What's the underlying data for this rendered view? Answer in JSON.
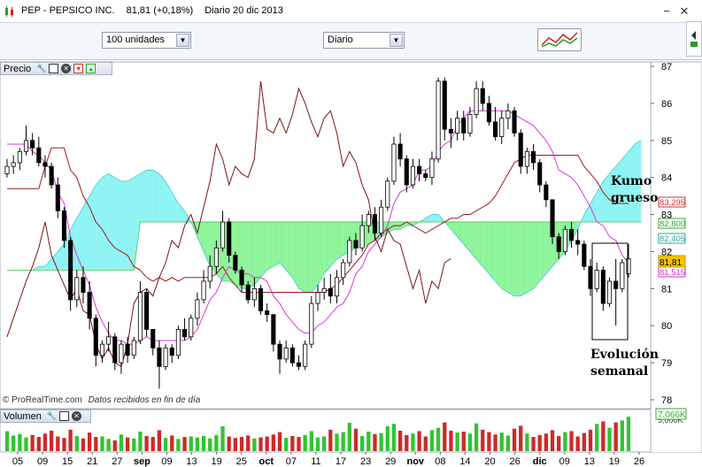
{
  "window": {
    "ticker": "PEP - PEPSICO INC.",
    "price_change": "81,81 (+0,18%)",
    "period_date": "Diario  20 dic 2013"
  },
  "toolbar": {
    "units_select": "100 unidades",
    "period_select": "Diario"
  },
  "price_panel": {
    "label": "Precio",
    "copyright": "© ProRealTime.com",
    "data_note": "Datos recibidos en fin de día"
  },
  "volume_panel": {
    "label": "Volumen",
    "last_value": "7,066K",
    "axis_label": "5,000K"
  },
  "annotations": {
    "kumo": "Kumo grueso",
    "evolucion": "Evolución semanal"
  },
  "colors": {
    "cloud_bull": "#8ef4f4",
    "cloud_bear": "#8ef49a",
    "kijun": "#9b1c1c",
    "tenkan": "#d838d8",
    "chikou": "#7a1515",
    "vol_up": "#31c431",
    "vol_down": "#cc2a2a"
  },
  "chart_data": {
    "type": "candlestick",
    "ylim": [
      78,
      87
    ],
    "yticks": [
      78,
      79,
      80,
      81,
      82,
      83,
      84,
      85,
      86,
      87
    ],
    "x_date_labels": [
      "05",
      "09",
      "15",
      "21",
      "27",
      "sep",
      "09",
      "13",
      "19",
      "25",
      "oct",
      "07",
      "11",
      "17",
      "23",
      "29",
      "nov",
      "08",
      "14",
      "20",
      "26",
      "dic",
      "09",
      "13",
      "19",
      "26"
    ],
    "last_price_tag": "81,81",
    "indicator_tags": [
      {
        "value": "83,295",
        "color": "#cc3333"
      },
      {
        "value": "82,800",
        "color": "#33aa33"
      },
      {
        "value": "82,405",
        "color": "#22aaaa"
      },
      {
        "value": "81,515",
        "color": "#cc33cc"
      }
    ],
    "candles": [
      [
        84.1,
        84.5,
        84.0,
        84.3
      ],
      [
        84.3,
        84.6,
        84.1,
        84.4
      ],
      [
        84.4,
        84.8,
        84.2,
        84.7
      ],
      [
        84.7,
        85.4,
        84.6,
        85.0
      ],
      [
        85.0,
        85.2,
        84.6,
        84.8
      ],
      [
        84.8,
        85.1,
        84.3,
        84.4
      ],
      [
        84.4,
        84.6,
        84.0,
        84.3
      ],
      [
        84.3,
        84.4,
        83.7,
        83.8
      ],
      [
        83.8,
        84.0,
        82.9,
        83.1
      ],
      [
        83.1,
        83.2,
        82.1,
        82.3
      ],
      [
        82.3,
        82.4,
        80.4,
        80.7
      ],
      [
        80.7,
        81.5,
        80.5,
        81.3
      ],
      [
        81.3,
        81.6,
        80.6,
        80.9
      ],
      [
        80.9,
        81.2,
        79.9,
        80.2
      ],
      [
        80.2,
        80.3,
        78.9,
        79.2
      ],
      [
        79.2,
        79.6,
        79.0,
        79.5
      ],
      [
        79.5,
        80.1,
        79.3,
        79.7
      ],
      [
        79.7,
        79.8,
        78.8,
        79.0
      ],
      [
        79.0,
        79.6,
        78.7,
        79.5
      ],
      [
        79.5,
        79.7,
        79.0,
        79.2
      ],
      [
        79.2,
        79.7,
        79.1,
        79.6
      ],
      [
        79.6,
        81.2,
        79.5,
        80.9
      ],
      [
        80.9,
        81.0,
        79.7,
        79.9
      ],
      [
        79.9,
        79.9,
        79.2,
        79.4
      ],
      [
        79.4,
        79.6,
        78.3,
        78.9
      ],
      [
        78.9,
        79.5,
        78.8,
        79.4
      ],
      [
        79.4,
        79.5,
        79.0,
        79.2
      ],
      [
        79.2,
        80.0,
        79.1,
        79.9
      ],
      [
        79.9,
        80.2,
        79.6,
        79.7
      ],
      [
        79.7,
        80.3,
        79.6,
        80.2
      ],
      [
        80.2,
        80.9,
        80.0,
        80.7
      ],
      [
        80.7,
        81.5,
        80.6,
        81.2
      ],
      [
        81.2,
        81.9,
        81.0,
        81.6
      ],
      [
        81.6,
        82.3,
        81.4,
        82.1
      ],
      [
        82.1,
        83.1,
        82.0,
        82.8
      ],
      [
        82.8,
        82.9,
        81.7,
        81.9
      ],
      [
        81.9,
        82.0,
        81.4,
        81.5
      ],
      [
        81.5,
        81.6,
        80.9,
        81.1
      ],
      [
        81.1,
        81.2,
        80.6,
        80.7
      ],
      [
        80.7,
        81.3,
        80.5,
        81.0
      ],
      [
        81.0,
        81.1,
        80.3,
        80.4
      ],
      [
        80.4,
        80.6,
        80.1,
        80.3
      ],
      [
        80.3,
        80.3,
        79.3,
        79.5
      ],
      [
        79.5,
        79.6,
        78.7,
        79.1
      ],
      [
        79.1,
        79.6,
        79.0,
        79.4
      ],
      [
        79.4,
        79.5,
        78.9,
        79.0
      ],
      [
        79.0,
        79.2,
        78.8,
        78.9
      ],
      [
        78.9,
        79.6,
        78.8,
        79.5
      ],
      [
        79.5,
        80.8,
        79.4,
        80.6
      ],
      [
        80.6,
        81.1,
        80.4,
        80.9
      ],
      [
        80.9,
        81.3,
        80.7,
        81.0
      ],
      [
        81.0,
        81.4,
        80.6,
        80.8
      ],
      [
        80.8,
        81.5,
        80.6,
        81.3
      ],
      [
        81.3,
        81.8,
        81.1,
        81.7
      ],
      [
        81.7,
        82.4,
        81.6,
        82.3
      ],
      [
        82.3,
        82.5,
        81.9,
        82.1
      ],
      [
        82.1,
        83.0,
        82.0,
        82.7
      ],
      [
        82.7,
        83.1,
        82.5,
        83.0
      ],
      [
        83.0,
        83.2,
        82.3,
        82.5
      ],
      [
        82.5,
        83.4,
        82.4,
        83.2
      ],
      [
        83.2,
        84.0,
        83.1,
        83.9
      ],
      [
        83.9,
        85.1,
        83.8,
        84.9
      ],
      [
        84.9,
        85.2,
        84.3,
        84.5
      ],
      [
        84.5,
        84.6,
        83.6,
        83.8
      ],
      [
        83.8,
        84.5,
        83.7,
        84.3
      ],
      [
        84.3,
        84.5,
        83.9,
        84.1
      ],
      [
        84.1,
        84.2,
        83.9,
        84.0
      ],
      [
        84.0,
        84.7,
        83.8,
        84.5
      ],
      [
        84.5,
        86.7,
        84.4,
        86.6
      ],
      [
        86.6,
        86.7,
        85.0,
        85.3
      ],
      [
        85.3,
        85.6,
        84.8,
        85.2
      ],
      [
        85.2,
        85.8,
        85.0,
        85.6
      ],
      [
        85.6,
        85.8,
        85.0,
        85.2
      ],
      [
        85.2,
        85.9,
        85.1,
        85.7
      ],
      [
        85.7,
        86.6,
        85.6,
        86.4
      ],
      [
        86.4,
        86.6,
        85.8,
        86.0
      ],
      [
        86.0,
        86.2,
        85.4,
        85.5
      ],
      [
        85.5,
        85.9,
        85.0,
        85.1
      ],
      [
        85.1,
        85.8,
        84.9,
        85.6
      ],
      [
        85.6,
        86.0,
        85.3,
        85.8
      ],
      [
        85.8,
        85.9,
        85.1,
        85.2
      ],
      [
        85.2,
        85.3,
        84.1,
        84.3
      ],
      [
        84.3,
        84.8,
        84.1,
        84.7
      ],
      [
        84.7,
        84.9,
        84.2,
        84.4
      ],
      [
        84.4,
        84.5,
        83.6,
        83.8
      ],
      [
        83.8,
        83.9,
        83.2,
        83.4
      ],
      [
        83.4,
        83.4,
        82.2,
        82.4
      ],
      [
        82.4,
        82.5,
        81.8,
        82.0
      ],
      [
        82.0,
        82.7,
        81.9,
        82.6
      ],
      [
        82.6,
        82.8,
        82.1,
        82.3
      ],
      [
        82.3,
        82.6,
        81.9,
        82.2
      ],
      [
        82.2,
        82.3,
        81.5,
        81.6
      ],
      [
        81.6,
        81.8,
        80.8,
        81.0
      ],
      [
        81.0,
        81.7,
        80.9,
        81.5
      ],
      [
        81.5,
        81.6,
        80.4,
        80.6
      ],
      [
        80.6,
        81.3,
        80.5,
        81.2
      ],
      [
        81.2,
        81.8,
        80.0,
        81.0
      ],
      [
        81.0,
        81.8,
        80.9,
        81.7
      ],
      [
        81.4,
        82.2,
        81.3,
        81.81
      ]
    ],
    "volume": [
      4.1,
      3.2,
      3.5,
      2.8,
      3.3,
      2.9,
      3.6,
      4.2,
      3.0,
      2.7,
      4.4,
      3.1,
      2.6,
      3.8,
      2.9,
      3.0,
      2.5,
      2.2,
      3.4,
      2.8,
      2.6,
      4.0,
      3.1,
      2.9,
      4.3,
      2.7,
      3.2,
      2.5,
      2.9,
      3.0,
      2.8,
      3.1,
      2.6,
      3.3,
      5.1,
      3.0,
      2.7,
      2.9,
      3.2,
      2.6,
      2.8,
      3.0,
      3.4,
      3.9,
      2.7,
      3.1,
      2.9,
      3.3,
      4.1,
      2.8,
      3.0,
      4.4,
      3.6,
      3.9,
      5.8,
      4.6,
      3.1,
      4.0,
      3.5,
      3.7,
      5.1,
      5.6,
      4.2,
      3.3,
      3.6,
      4.1,
      3.0,
      4.3,
      4.8,
      5.9,
      4.2,
      3.8,
      4.0,
      3.6,
      5.7,
      4.4,
      3.9,
      3.4,
      3.8,
      3.2,
      4.6,
      5.2,
      3.6,
      2.9,
      3.3,
      3.6,
      4.3,
      3.1,
      3.9,
      4.1,
      3.0,
      3.7,
      4.4,
      5.6,
      6.1,
      4.8,
      5.9,
      6.3,
      7.066
    ],
    "series": [
      {
        "name": "Tenkan",
        "values": [
          84.9,
          84.9,
          84.9,
          84.9,
          84.7,
          84.6,
          84.4,
          84.2,
          83.6,
          83.3,
          82.4,
          81.9,
          81.5,
          81.1,
          80.5,
          80.1,
          79.8,
          79.6,
          79.6,
          79.5,
          79.5,
          79.6,
          79.7,
          79.6,
          79.6,
          79.6,
          79.6,
          79.6,
          79.6,
          79.7,
          79.9,
          80.3,
          80.7,
          80.9,
          81.3,
          81.6,
          81.5,
          81.4,
          81.4,
          81.3,
          81.3,
          81.2,
          80.8,
          80.6,
          80.3,
          80.1,
          79.9,
          79.8,
          79.8,
          80.0,
          80.1,
          80.3,
          80.5,
          80.6,
          80.9,
          81.4,
          81.6,
          82.0,
          82.2,
          82.4,
          82.7,
          83.3,
          83.6,
          83.7,
          83.8,
          84.2,
          84.2,
          84.3,
          84.7,
          84.9,
          85.0,
          85.4,
          85.6,
          85.8,
          85.8,
          85.8,
          85.8,
          85.8,
          85.8,
          85.8,
          85.7,
          85.6,
          85.5,
          85.4,
          85.2,
          85.0,
          84.7,
          84.2,
          84.1,
          84.0,
          83.8,
          83.5,
          83.2,
          82.8,
          82.7,
          82.4,
          82.3,
          81.9,
          81.7
        ]
      },
      {
        "name": "Kijun",
        "values": [
          83.7,
          83.7,
          83.7,
          83.7,
          83.7,
          83.7,
          84.3,
          84.8,
          84.8,
          84.8,
          84.2,
          84.0,
          83.5,
          83.2,
          82.8,
          82.6,
          82.3,
          82.1,
          82.0,
          81.9,
          81.6,
          81.5,
          81.3,
          81.2,
          81.3,
          81.2,
          81.3,
          81.2,
          81.3,
          81.3,
          81.3,
          81.3,
          81.3,
          81.4,
          81.6,
          81.3,
          81.1,
          80.9,
          80.9,
          80.9,
          80.9,
          80.9,
          80.9,
          80.9,
          80.9,
          80.9,
          80.9,
          80.9,
          80.9,
          80.9,
          80.9,
          81.0,
          81.1,
          81.3,
          81.5,
          81.7,
          81.9,
          82.2,
          82.3,
          82.5,
          82.6,
          82.7,
          82.7,
          82.8,
          82.7,
          82.6,
          82.5,
          82.6,
          82.7,
          82.8,
          82.9,
          82.9,
          83.0,
          83.0,
          83.1,
          83.2,
          83.3,
          83.5,
          83.8,
          84.1,
          84.4,
          84.5,
          84.6,
          84.6,
          84.6,
          84.6,
          84.6,
          84.6,
          84.6,
          84.6,
          84.6,
          84.3,
          84.1,
          83.9,
          83.6,
          83.4,
          83.3,
          83.3,
          83.3
        ]
      },
      {
        "name": "Chikou",
        "values": [
          79.7,
          80.2,
          80.7,
          81.2,
          81.6,
          82.1,
          82.8,
          81.9,
          81.5,
          81.1,
          80.7,
          81.0,
          80.4,
          80.3,
          79.5,
          79.1,
          79.4,
          79.0,
          78.9,
          79.5,
          80.6,
          80.9,
          81.0,
          80.8,
          81.3,
          81.7,
          82.3,
          82.1,
          82.7,
          83.0,
          82.5,
          83.2,
          83.9,
          84.9,
          84.5,
          83.8,
          84.3,
          84.1,
          84.0,
          84.5,
          86.6,
          85.3,
          85.2,
          85.6,
          85.2,
          85.7,
          86.4,
          86.0,
          85.5,
          85.1,
          85.6,
          85.8,
          85.2,
          84.3,
          84.7,
          84.4,
          83.8,
          83.4,
          82.4,
          82.0,
          82.6,
          82.3,
          82.2,
          81.6,
          81.0,
          81.5,
          80.6,
          81.2,
          81.0,
          81.7,
          81.81
        ]
      },
      {
        "name": "Senkou A",
        "values": [
          81.5,
          81.5,
          81.5,
          81.5,
          81.5,
          81.6,
          81.6,
          81.8,
          82.0,
          82.2,
          82.6,
          82.9,
          83.2,
          83.5,
          83.8,
          84.0,
          84.1,
          84.0,
          83.9,
          83.9,
          84.0,
          84.1,
          84.2,
          84.2,
          84.1,
          83.9,
          83.6,
          83.3,
          83.1,
          82.8,
          82.4,
          82.0,
          81.6,
          81.4,
          81.2,
          81.2,
          81.1,
          81.0,
          81.0,
          81.1,
          81.3,
          81.5,
          81.6,
          81.7,
          81.5,
          81.3,
          81.0,
          80.9,
          80.9,
          81.1,
          81.4,
          81.6,
          81.8,
          81.9,
          82.0,
          82.1,
          82.1,
          82.2,
          82.3,
          82.4,
          82.5,
          82.6,
          82.6,
          82.7,
          82.7,
          82.8,
          82.9,
          83.0,
          83.0,
          82.8,
          82.6,
          82.4,
          82.2,
          82.0,
          81.8,
          81.6,
          81.4,
          81.2,
          81.0,
          80.9,
          80.8,
          80.8,
          80.9,
          81.0,
          81.2,
          81.4,
          81.6,
          81.8,
          82.0,
          82.3,
          82.6,
          83.0,
          83.3,
          83.6,
          83.9,
          84.1,
          84.3,
          84.5,
          84.7,
          84.9,
          85.0
        ]
      },
      {
        "name": "Senkou B",
        "values": [
          81.5,
          81.5,
          81.5,
          81.5,
          81.5,
          81.5,
          81.5,
          81.5,
          81.5,
          81.5,
          81.5,
          81.5,
          81.5,
          81.5,
          81.5,
          81.5,
          81.5,
          81.5,
          81.5,
          81.5,
          81.5,
          82.8,
          82.8,
          82.8,
          82.8,
          82.8,
          82.8,
          82.8,
          82.8,
          82.8,
          82.8,
          82.8,
          82.8,
          82.8,
          82.8,
          82.8,
          82.8,
          82.8,
          82.8,
          82.8,
          82.8,
          82.8,
          82.8,
          82.8,
          82.8,
          82.8,
          82.8,
          82.8,
          82.8,
          82.8,
          82.8,
          82.8,
          82.8,
          82.8,
          82.8,
          82.8,
          82.8,
          82.8,
          82.8,
          82.8,
          82.8,
          82.8,
          82.8,
          82.8,
          82.8,
          82.8,
          82.8,
          82.8,
          82.8,
          82.8,
          82.8,
          82.8,
          82.8,
          82.8,
          82.8,
          82.8,
          82.8,
          82.8,
          82.8,
          82.8,
          82.8,
          82.8,
          82.8,
          82.8,
          82.8,
          82.8,
          82.8,
          82.8,
          82.8,
          82.8,
          82.8,
          82.8,
          82.8,
          82.8,
          82.8,
          82.8,
          82.8,
          82.8,
          82.8,
          82.8,
          82.8
        ]
      }
    ]
  }
}
